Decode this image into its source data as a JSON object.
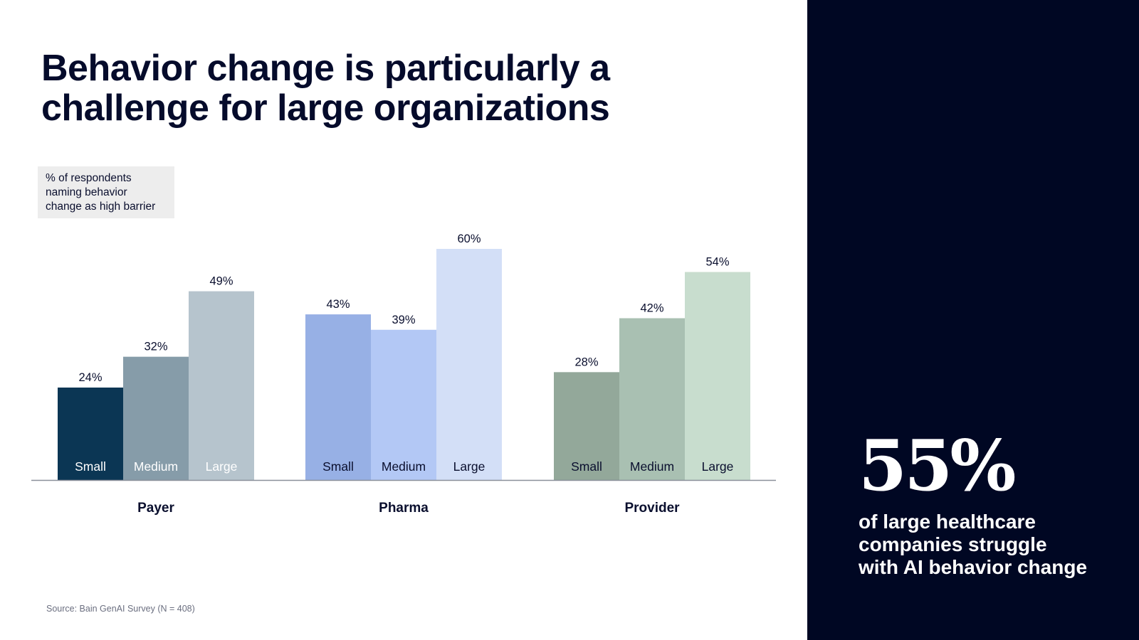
{
  "title": [
    "Behavior change is particularly a",
    "challenge for large organizations"
  ],
  "legend_box": [
    "% of respondents",
    "naming behavior",
    "change as high barrier"
  ],
  "source": "Source: Bain GenAI Survey (N = 408)",
  "callout": {
    "value": "55%",
    "text": [
      "of large healthcare",
      "companies struggle",
      "with AI behavior change"
    ]
  },
  "colors": {
    "panel": "#000723",
    "axis": "#8a8f99"
  },
  "chart_data": {
    "type": "bar",
    "ylabel": "% of respondents naming behavior change as high barrier",
    "ylim": [
      0,
      60
    ],
    "grid": false,
    "categories": [
      "Payer",
      "Pharma",
      "Provider"
    ],
    "sizes": [
      "Small",
      "Medium",
      "Large"
    ],
    "groups": [
      {
        "name": "Payer",
        "values": [
          24,
          32,
          49
        ],
        "labels": [
          "24%",
          "32%",
          "49%"
        ],
        "colors": [
          "#0b3654",
          "#869ca9",
          "#b6c4cd"
        ],
        "label_colors": [
          "#ffffff",
          "#ffffff",
          "#ffffff"
        ]
      },
      {
        "name": "Pharma",
        "values": [
          43,
          39,
          60
        ],
        "labels": [
          "43%",
          "39%",
          "60%"
        ],
        "colors": [
          "#97b0e5",
          "#b3c8f5",
          "#d3dff7"
        ],
        "label_colors": [
          "#0a0f2e",
          "#0a0f2e",
          "#0a0f2e"
        ]
      },
      {
        "name": "Provider",
        "values": [
          28,
          42,
          54
        ],
        "labels": [
          "28%",
          "42%",
          "54%"
        ],
        "colors": [
          "#93a89a",
          "#a9c0b2",
          "#c8ddce"
        ],
        "label_colors": [
          "#0a0f2e",
          "#0a0f2e",
          "#0a0f2e"
        ]
      }
    ]
  }
}
